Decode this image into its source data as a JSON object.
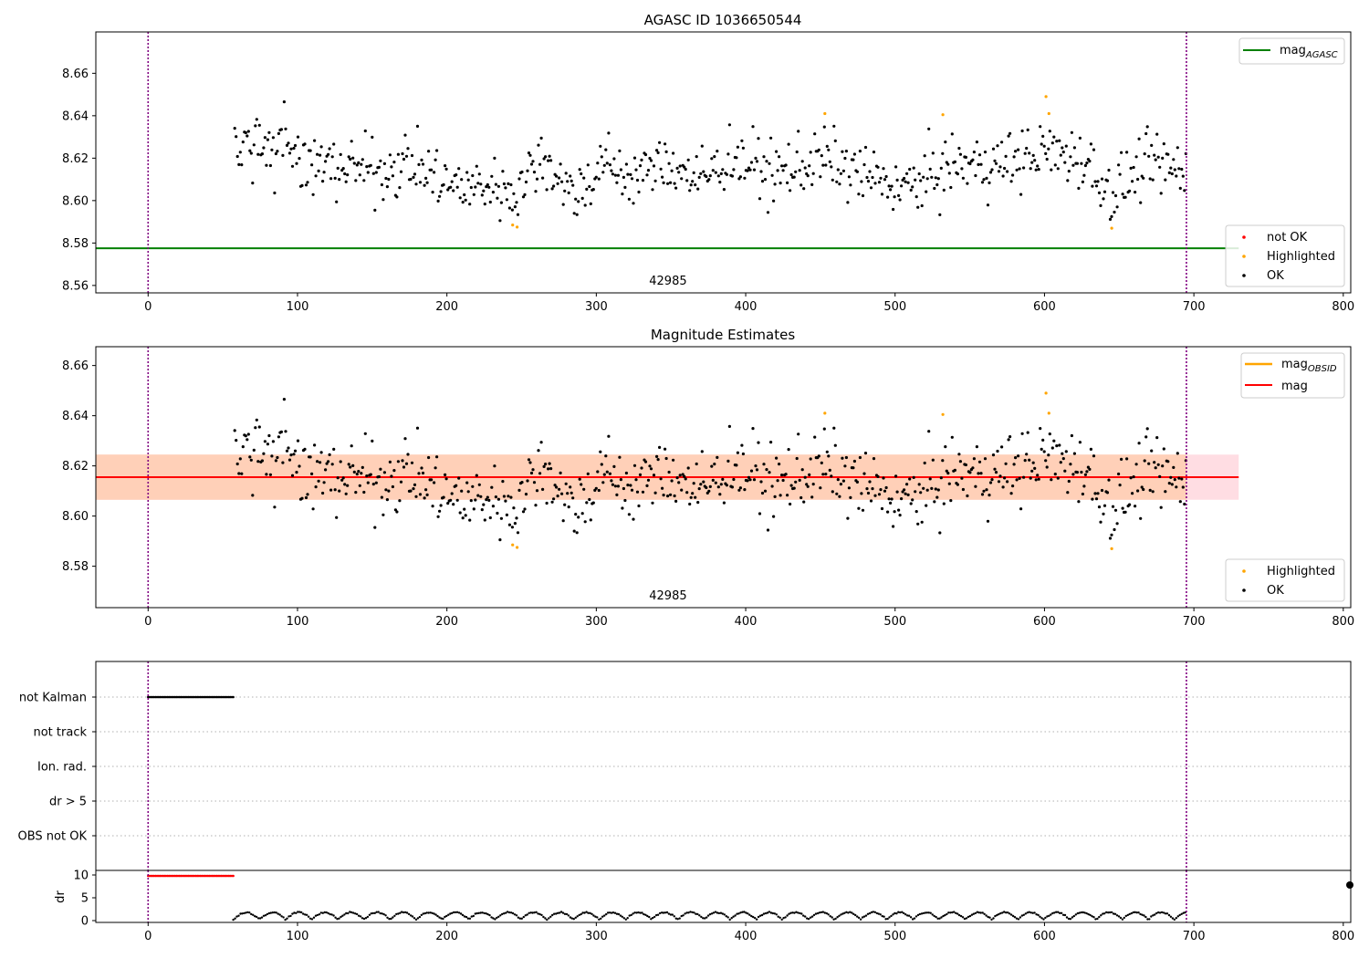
{
  "figure": {
    "title": "AGASC ID 1036650544"
  },
  "colors": {
    "ok": "#000000",
    "highlighted": "#ffa500",
    "not_ok": "#ff0000",
    "mag_agasc": "#008000",
    "mag": "#ff0000",
    "mag_obsid": "#ffa500",
    "band_outer": "#ffdde3",
    "band_inner": "#ffd0b8",
    "obs_boundary": "#800080",
    "grid": "#b0b0b0"
  },
  "chart_data": [
    {
      "id": "top",
      "type": "scatter",
      "title": "",
      "xlabel": "",
      "ylabel": "",
      "xlim": [
        -35,
        805
      ],
      "ylim": [
        8.5565,
        8.6795
      ],
      "xticks": [
        0,
        100,
        200,
        300,
        400,
        500,
        600,
        700,
        800
      ],
      "yticks": [
        8.56,
        8.58,
        8.6,
        8.62,
        8.64,
        8.66
      ],
      "obs_boundaries": [
        0,
        695
      ],
      "obs_label": {
        "x": 348,
        "text": "42985"
      },
      "lines": [
        {
          "key": "mag_agasc",
          "y": 8.5775,
          "x0": -35,
          "x1": 730,
          "color_key": "mag_agasc"
        }
      ],
      "legend_lines": [
        {
          "label": "mag",
          "sub": "AGASC",
          "color_key": "mag_agasc",
          "position": "top-right"
        }
      ],
      "legend_points": [
        {
          "label": "not OK",
          "color_key": "not_ok"
        },
        {
          "label": "Highlighted",
          "color_key": "highlighted"
        },
        {
          "label": "OK",
          "color_key": "ok"
        }
      ],
      "series": [
        "ok",
        "highlighted"
      ]
    },
    {
      "id": "middle",
      "type": "scatter",
      "title": "Magnitude Estimates",
      "xlabel": "",
      "ylabel": "",
      "xlim": [
        -35,
        805
      ],
      "ylim": [
        8.5635,
        8.6675
      ],
      "xticks": [
        0,
        100,
        200,
        300,
        400,
        500,
        600,
        700,
        800
      ],
      "yticks": [
        8.58,
        8.6,
        8.62,
        8.64,
        8.66
      ],
      "obs_boundaries": [
        0,
        695
      ],
      "obs_label": {
        "x": 348,
        "text": "42985"
      },
      "bands": [
        {
          "y0": 8.6065,
          "y1": 8.6245,
          "x0": -35,
          "x1": 730,
          "color_key": "band_outer"
        },
        {
          "y0": 8.6065,
          "y1": 8.6245,
          "x0": -35,
          "x1": 695,
          "color_key": "band_inner"
        }
      ],
      "lines": [
        {
          "key": "mag_obsid",
          "y": 8.6155,
          "x0": -35,
          "x1": 695,
          "color_key": "mag_obsid"
        },
        {
          "key": "mag",
          "y": 8.6155,
          "x0": -35,
          "x1": 730,
          "color_key": "mag"
        }
      ],
      "legend_lines": [
        {
          "label": "mag",
          "sub": "OBSID",
          "color_key": "mag_obsid"
        },
        {
          "label": "mag",
          "sub": "",
          "color_key": "mag"
        }
      ],
      "legend_points": [
        {
          "label": "Highlighted",
          "color_key": "highlighted"
        },
        {
          "label": "OK",
          "color_key": "ok"
        }
      ],
      "series": [
        "ok",
        "highlighted"
      ]
    },
    {
      "id": "flags",
      "type": "scatter",
      "title": "",
      "xlim": [
        -35,
        805
      ],
      "categories": [
        "not Kalman",
        "not track",
        "Ion. rad.",
        "dr > 5",
        "OBS not OK"
      ],
      "obs_boundaries": [
        0,
        695
      ],
      "flagged": [
        {
          "category": "not Kalman",
          "x_range": [
            0,
            57
          ]
        }
      ]
    },
    {
      "id": "dr",
      "type": "scatter",
      "title": "",
      "xlabel": "",
      "ylabel": "dr",
      "xlim": [
        -35,
        805
      ],
      "ylim": [
        -0.4,
        11.0
      ],
      "xticks": [
        0,
        100,
        200,
        300,
        400,
        500,
        600,
        700,
        800
      ],
      "yticks": [
        0,
        5,
        10
      ],
      "obs_boundaries": [
        0,
        695
      ],
      "clipped": {
        "x_range": [
          0,
          57
        ],
        "y": 9.8,
        "color_key": "not_ok"
      },
      "series": [
        "dr"
      ]
    }
  ]
}
